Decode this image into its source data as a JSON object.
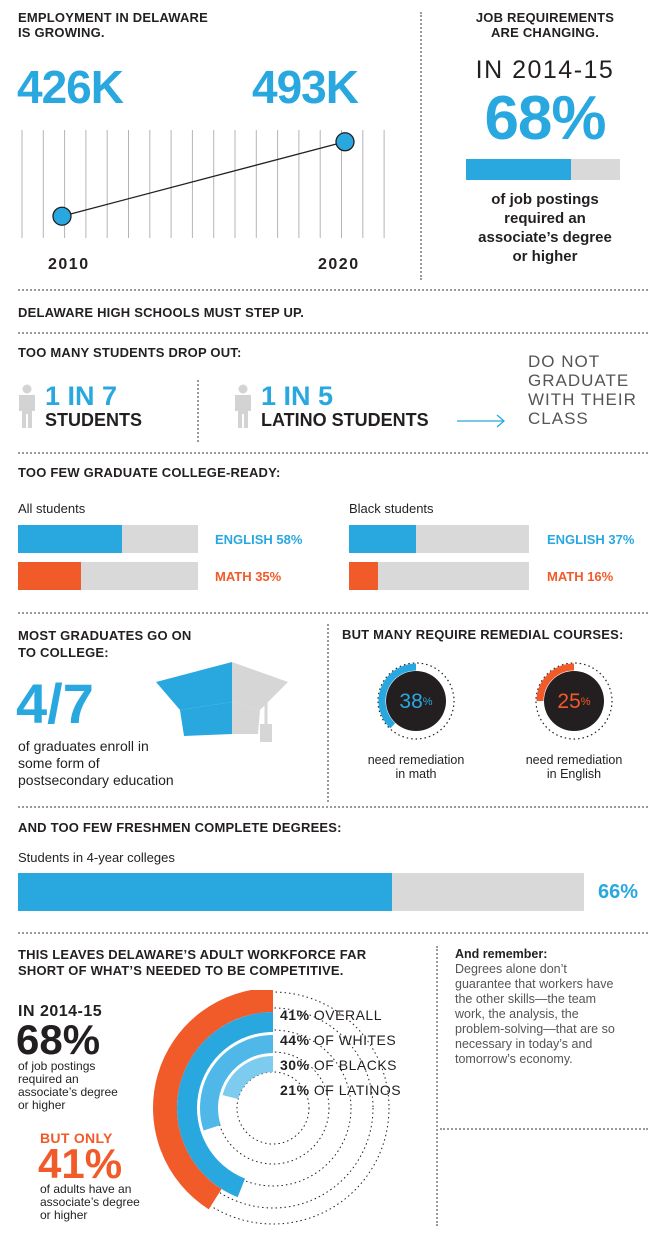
{
  "colors": {
    "blue": "#29a8e0",
    "orange": "#f15a29",
    "gray": "#d9d9d9",
    "dark": "#231f20",
    "light_blue": "#7ecbf0",
    "mid_blue": "#4fb8e8"
  },
  "employment": {
    "heading_line1": "EMPLOYMENT IN DELAWARE",
    "heading_line2": "IS GROWING.",
    "value_2010": "426K",
    "value_2020": "493K",
    "year_2010": "2010",
    "year_2020": "2020",
    "chart_data": {
      "type": "line",
      "x": [
        "2010",
        "2020"
      ],
      "values": [
        426,
        493
      ],
      "unit": "K"
    }
  },
  "job_requirements": {
    "heading_line1": "JOB REQUIREMENTS",
    "heading_line2": "ARE CHANGING.",
    "period": "IN 2014-15",
    "percent": "68%",
    "fraction": 0.68,
    "desc_line1": "of job postings",
    "desc_line2": "required an",
    "desc_line3": "associate’s degree",
    "desc_line4": "or higher"
  },
  "high_schools": {
    "heading": "DELAWARE HIGH SCHOOLS MUST STEP UP."
  },
  "dropout": {
    "heading": "TOO MANY STUDENTS DROP OUT:",
    "stat1_value": "1 IN 7",
    "stat1_label": "STUDENTS",
    "stat2_value": "1 IN 5",
    "stat2_label": "LATINO STUDENTS",
    "note_line1": "DO NOT",
    "note_line2": "GRADUATE",
    "note_line3": "WITH THEIR",
    "note_line4": "CLASS"
  },
  "college_ready": {
    "heading": "TOO FEW GRADUATE COLLEGE-READY:",
    "groups": [
      {
        "name": "All students",
        "english_label": "ENGLISH 58%",
        "english": 0.58,
        "math_label": "MATH 35%",
        "math": 0.35
      },
      {
        "name": "Black students",
        "english_label": "ENGLISH 37%",
        "english": 0.37,
        "math_label": "MATH 16%",
        "math": 0.16
      }
    ]
  },
  "go_on": {
    "heading_line1": "MOST GRADUATES GO ON",
    "heading_line2": "TO COLLEGE:",
    "value": "4/7",
    "desc_line1": "of graduates enroll in",
    "desc_line2": "some form of",
    "desc_line3": "postsecondary education",
    "icon": "graduation-cap-icon"
  },
  "remedial": {
    "heading": "BUT MANY REQUIRE REMEDIAL COURSES:",
    "items": [
      {
        "value": "38",
        "unit": "%",
        "fraction": 0.38,
        "label_line1": "need remediation",
        "label_line2": "in math"
      },
      {
        "value": "25",
        "unit": "%",
        "fraction": 0.25,
        "label_line1": "need remediation",
        "label_line2": "in English"
      }
    ]
  },
  "freshmen": {
    "heading": "AND TOO FEW FRESHMEN COMPLETE DEGREES:",
    "label": "Students in 4-year colleges",
    "percent": "66%",
    "fraction": 0.66
  },
  "workforce": {
    "heading_line1": "THIS LEAVES DELAWARE’S ADULT WORKFORCE FAR",
    "heading_line2": "SHORT OF WHAT’S NEEDED TO BE COMPETITIVE.",
    "period": "IN 2014-15",
    "percent": "68%",
    "desc_line1": "of job postings",
    "desc_line2": "required an",
    "desc_line3": "associate’s degree",
    "desc_line4": "or higher",
    "but_only": "BUT ONLY",
    "adults_percent": "41%",
    "adults_line1": "of adults have an",
    "adults_line2": "associate’s degree",
    "adults_line3": "or higher",
    "chart_data": {
      "type": "radial-bar",
      "series": [
        {
          "pct": "41%",
          "label": "OVERALL",
          "value": 41
        },
        {
          "pct": "44%",
          "label": "OF WHITES",
          "value": 44
        },
        {
          "pct": "30%",
          "label": "OF BLACKS",
          "value": 30
        },
        {
          "pct": "21%",
          "label": "OF LATINOS",
          "value": 21
        }
      ]
    }
  },
  "remember": {
    "title": "And remember:",
    "line1": "Degrees alone don’t",
    "line2": "guarantee that workers have",
    "line3": "the other skills—the team",
    "line4": "work, the analysis, the",
    "line5": "problem-solving—that are so",
    "line6": "necessary in today’s and",
    "line7": "tomorrow’s economy."
  }
}
